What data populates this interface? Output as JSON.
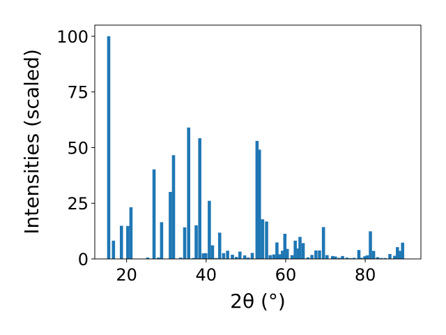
{
  "chart_data": {
    "type": "bar",
    "xlabel": "2θ (°)",
    "ylabel": "Intensities (scaled)",
    "xlim": [
      12,
      94
    ],
    "ylim": [
      0,
      105
    ],
    "xticks": [
      20,
      40,
      60,
      80
    ],
    "yticks": [
      0,
      25,
      50,
      75,
      100
    ],
    "grid": false,
    "legend": "none",
    "bar_width": 0.8,
    "color": "#1f77b4",
    "x": [
      15.5,
      16.7,
      18.7,
      20.3,
      21.1,
      25.3,
      26.9,
      28.0,
      28.8,
      31.0,
      31.8,
      33.6,
      34.6,
      35.6,
      36.8,
      37.5,
      38.4,
      39.3,
      39.9,
      40.8,
      41.6,
      42.5,
      43.4,
      44.4,
      45.4,
      46.6,
      47.6,
      48.5,
      49.7,
      50.6,
      51.6,
      52.8,
      53.4,
      54.2,
      55.2,
      56.1,
      57.0,
      57.8,
      58.5,
      59.2,
      59.8,
      60.4,
      61.6,
      62.4,
      63.2,
      63.6,
      64.4,
      65.6,
      66.6,
      67.6,
      68.5,
      69.5,
      70.4,
      71.8,
      72.5,
      73.4,
      74.3,
      75.4,
      76.3,
      77.2,
      78.4,
      79.0,
      79.9,
      80.5,
      81.3,
      82.1,
      83.1,
      84.0,
      85.0,
      86.2,
      87.4,
      88.1,
      88.6,
      89.4
    ],
    "values": [
      100,
      8.2,
      14.9,
      14.8,
      23.2,
      0.6,
      40.2,
      0.6,
      16.5,
      30.1,
      46.6,
      0.6,
      14.2,
      59.0,
      0.4,
      15.1,
      54.2,
      2.5,
      2.6,
      26.1,
      6.1,
      0.4,
      11.8,
      2.6,
      3.7,
      1.9,
      0.9,
      3.3,
      1.6,
      0.6,
      2.7,
      53.0,
      49.1,
      17.8,
      16.8,
      1.7,
      2.0,
      7.4,
      2.1,
      3.7,
      11.3,
      4.5,
      1.7,
      8.2,
      4.7,
      9.9,
      7.1,
      0.7,
      1.8,
      3.8,
      3.8,
      14.3,
      1.7,
      1.3,
      1.1,
      0.5,
      1.3,
      0.6,
      0.3,
      0.5,
      4.0,
      0.5,
      1.2,
      1.6,
      12.4,
      3.6,
      0.8,
      0.4,
      0.4,
      2.2,
      1.4,
      5.3,
      3.6,
      7.3
    ]
  }
}
